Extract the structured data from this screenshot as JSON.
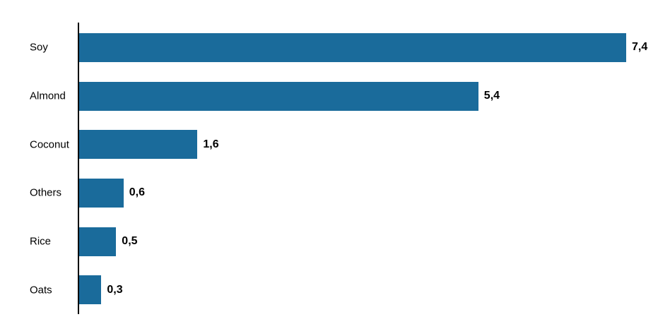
{
  "chart_data": {
    "type": "bar",
    "orientation": "horizontal",
    "title": "",
    "xlabel": "",
    "ylabel": "",
    "categories": [
      "Soy",
      "Almond",
      "Coconut",
      "Others",
      "Rice",
      "Oats"
    ],
    "values": [
      7.4,
      5.4,
      1.6,
      0.6,
      0.5,
      0.3
    ],
    "value_labels": [
      "7,4",
      "5,4",
      "1,6",
      "0,6",
      "0,5",
      "0,3"
    ],
    "xlim": [
      0,
      7.4
    ],
    "grid": false,
    "legend": false,
    "bar_color": "#1a6b9b",
    "axis_color": "#000000",
    "text_color": "#000000"
  }
}
